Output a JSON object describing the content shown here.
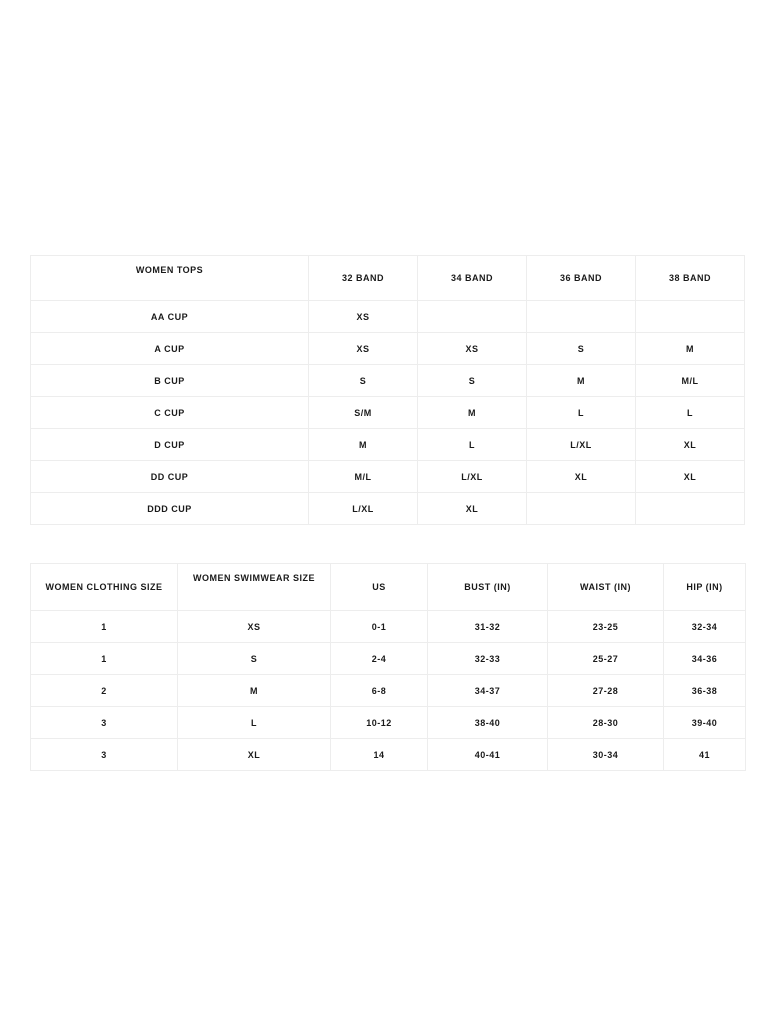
{
  "page": {
    "background": "#ffffff",
    "border_color": "#ededed",
    "text_color": "#1a1a1a"
  },
  "tables": [
    {
      "title": "WOMEN TOPS",
      "columns": [
        "WOMEN TOPS",
        "32 BAND",
        "34 BAND",
        "36 BAND",
        "38 BAND"
      ],
      "rows": [
        [
          "AA CUP",
          "XS",
          "",
          "",
          ""
        ],
        [
          "A CUP",
          "XS",
          "XS",
          "S",
          "M"
        ],
        [
          "B CUP",
          "S",
          "S",
          "M",
          "M/L"
        ],
        [
          "C CUP",
          "S/M",
          "M",
          "L",
          "L"
        ],
        [
          "D CUP",
          "M",
          "L",
          "L/XL",
          "XL"
        ],
        [
          "DD CUP",
          "M/L",
          "L/XL",
          "XL",
          "XL"
        ],
        [
          "DDD CUP",
          "L/XL",
          "XL",
          "",
          ""
        ]
      ]
    },
    {
      "title": "WOMEN SWIMWEAR SIZE",
      "columns": [
        "WOMEN CLOTHING SIZE",
        "WOMEN SWIMWEAR SIZE",
        "US",
        "BUST (IN)",
        "WAIST (IN)",
        "HIP (IN)"
      ],
      "rows": [
        [
          "1",
          "XS",
          "0-1",
          "31-32",
          "23-25",
          "32-34"
        ],
        [
          "1",
          "S",
          "2-4",
          "32-33",
          "25-27",
          "34-36"
        ],
        [
          "2",
          "M",
          "6-8",
          "34-37",
          "27-28",
          "36-38"
        ],
        [
          "3",
          "L",
          "10-12",
          "38-40",
          "28-30",
          "39-40"
        ],
        [
          "3",
          "XL",
          "14",
          "40-41",
          "30-34",
          "41"
        ]
      ]
    }
  ]
}
